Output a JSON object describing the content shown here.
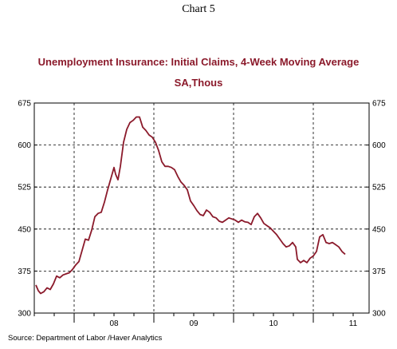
{
  "caption": "Chart 5",
  "source": "Source:  Department of Labor /Haver Analytics",
  "chart_data": {
    "type": "line",
    "title": "Unemployment Insurance: Initial Claims, 4-Week Moving Average",
    "subtitle": "SA,Thous",
    "xlabel": "",
    "ylabel": "",
    "y_ticks": [
      300,
      375,
      450,
      525,
      600,
      675
    ],
    "ylim": [
      300,
      675
    ],
    "x_range": [
      2007.5,
      2011.7
    ],
    "x_tick_labels": [
      {
        "label": "08",
        "x": 2008.5
      },
      {
        "label": "09",
        "x": 2009.5
      },
      {
        "label": "10",
        "x": 2010.5
      },
      {
        "label": "11",
        "x": 2011.5
      }
    ],
    "year_boundaries": [
      2008,
      2009,
      2010,
      2011
    ],
    "grid": true,
    "line_color": "#8b1a2b",
    "series": [
      {
        "name": "",
        "points": [
          [
            2007.52,
            350
          ],
          [
            2007.55,
            340
          ],
          [
            2007.58,
            335
          ],
          [
            2007.62,
            338
          ],
          [
            2007.66,
            345
          ],
          [
            2007.7,
            342
          ],
          [
            2007.74,
            352
          ],
          [
            2007.78,
            366
          ],
          [
            2007.82,
            363
          ],
          [
            2007.86,
            368
          ],
          [
            2007.9,
            370
          ],
          [
            2007.94,
            372
          ],
          [
            2007.98,
            378
          ],
          [
            2008.02,
            386
          ],
          [
            2008.06,
            392
          ],
          [
            2008.1,
            412
          ],
          [
            2008.14,
            432
          ],
          [
            2008.18,
            430
          ],
          [
            2008.22,
            448
          ],
          [
            2008.26,
            472
          ],
          [
            2008.3,
            478
          ],
          [
            2008.34,
            480
          ],
          [
            2008.38,
            498
          ],
          [
            2008.42,
            520
          ],
          [
            2008.46,
            540
          ],
          [
            2008.5,
            560
          ],
          [
            2008.52,
            548
          ],
          [
            2008.55,
            538
          ],
          [
            2008.58,
            562
          ],
          [
            2008.62,
            605
          ],
          [
            2008.66,
            628
          ],
          [
            2008.7,
            640
          ],
          [
            2008.74,
            644
          ],
          [
            2008.78,
            650
          ],
          [
            2008.82,
            650
          ],
          [
            2008.86,
            632
          ],
          [
            2008.9,
            626
          ],
          [
            2008.94,
            618
          ],
          [
            2008.98,
            614
          ],
          [
            2009.02,
            605
          ],
          [
            2009.06,
            590
          ],
          [
            2009.1,
            570
          ],
          [
            2009.14,
            562
          ],
          [
            2009.18,
            562
          ],
          [
            2009.22,
            560
          ],
          [
            2009.26,
            556
          ],
          [
            2009.3,
            544
          ],
          [
            2009.34,
            534
          ],
          [
            2009.38,
            528
          ],
          [
            2009.42,
            520
          ],
          [
            2009.46,
            500
          ],
          [
            2009.5,
            492
          ],
          [
            2009.54,
            483
          ],
          [
            2009.58,
            476
          ],
          [
            2009.62,
            474
          ],
          [
            2009.66,
            484
          ],
          [
            2009.7,
            480
          ],
          [
            2009.74,
            472
          ],
          [
            2009.78,
            470
          ],
          [
            2009.82,
            464
          ],
          [
            2009.86,
            462
          ],
          [
            2009.9,
            466
          ],
          [
            2009.94,
            470
          ],
          [
            2009.98,
            468
          ],
          [
            2010.02,
            466
          ],
          [
            2010.06,
            462
          ],
          [
            2010.1,
            466
          ],
          [
            2010.14,
            463
          ],
          [
            2010.18,
            462
          ],
          [
            2010.22,
            458
          ],
          [
            2010.26,
            472
          ],
          [
            2010.3,
            478
          ],
          [
            2010.34,
            470
          ],
          [
            2010.38,
            460
          ],
          [
            2010.42,
            456
          ],
          [
            2010.46,
            452
          ],
          [
            2010.5,
            446
          ],
          [
            2010.54,
            440
          ],
          [
            2010.58,
            432
          ],
          [
            2010.62,
            424
          ],
          [
            2010.66,
            418
          ],
          [
            2010.7,
            420
          ],
          [
            2010.74,
            426
          ],
          [
            2010.78,
            418
          ],
          [
            2010.8,
            396
          ],
          [
            2010.84,
            390
          ],
          [
            2010.88,
            394
          ],
          [
            2010.92,
            390
          ],
          [
            2010.96,
            398
          ],
          [
            2011.0,
            402
          ],
          [
            2011.04,
            410
          ],
          [
            2011.08,
            436
          ],
          [
            2011.12,
            440
          ],
          [
            2011.16,
            426
          ],
          [
            2011.2,
            424
          ],
          [
            2011.24,
            426
          ],
          [
            2011.28,
            422
          ],
          [
            2011.32,
            418
          ],
          [
            2011.36,
            410
          ],
          [
            2011.4,
            405
          ]
        ]
      }
    ]
  }
}
